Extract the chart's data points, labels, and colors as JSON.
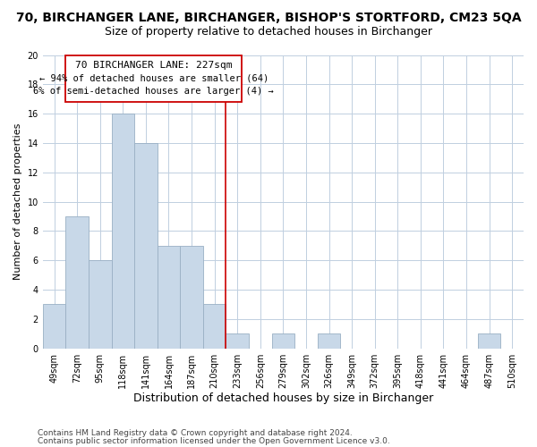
{
  "title": "70, BIRCHANGER LANE, BIRCHANGER, BISHOP'S STORTFORD, CM23 5QA",
  "subtitle": "Size of property relative to detached houses in Birchanger",
  "xlabel": "Distribution of detached houses by size in Birchanger",
  "ylabel": "Number of detached properties",
  "bin_labels": [
    "49sqm",
    "72sqm",
    "95sqm",
    "118sqm",
    "141sqm",
    "164sqm",
    "187sqm",
    "210sqm",
    "233sqm",
    "256sqm",
    "279sqm",
    "302sqm",
    "326sqm",
    "349sqm",
    "372sqm",
    "395sqm",
    "418sqm",
    "441sqm",
    "464sqm",
    "487sqm",
    "510sqm"
  ],
  "bar_values": [
    3,
    9,
    6,
    16,
    14,
    7,
    7,
    3,
    1,
    0,
    1,
    0,
    1,
    0,
    0,
    0,
    0,
    0,
    0,
    1,
    0
  ],
  "bar_color": "#c8d8e8",
  "bar_edgecolor": "#9ab0c4",
  "grid_color": "#c0cfe0",
  "vline_color": "#cc0000",
  "annotation_line1": "70 BIRCHANGER LANE: 227sqm",
  "annotation_line2": "← 94% of detached houses are smaller (64)",
  "annotation_line3": "6% of semi-detached houses are larger (4) →",
  "ylim": [
    0,
    20
  ],
  "yticks": [
    0,
    2,
    4,
    6,
    8,
    10,
    12,
    14,
    16,
    18,
    20
  ],
  "footer_line1": "Contains HM Land Registry data © Crown copyright and database right 2024.",
  "footer_line2": "Contains public sector information licensed under the Open Government Licence v3.0.",
  "background_color": "#ffffff",
  "title_fontsize": 10,
  "subtitle_fontsize": 9,
  "xlabel_fontsize": 9,
  "ylabel_fontsize": 8,
  "tick_fontsize": 7,
  "annotation_fontsize": 8,
  "footer_fontsize": 6.5
}
